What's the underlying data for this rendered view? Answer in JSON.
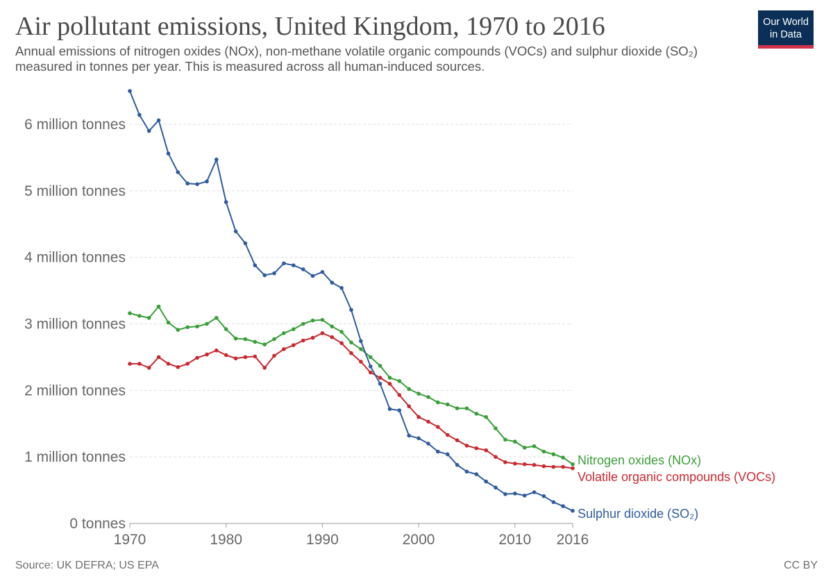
{
  "title": "Air pollutant emissions, United Kingdom, 1970 to 2016",
  "subtitle": "Annual emissions of nitrogen oxides (NOx), non-methane volatile organic compounds (VOCs) and sulphur dioxide (SO₂) measured in tonnes per year. This is measured across all human-induced sources.",
  "logo": {
    "line1": "Our World",
    "line2": "in Data",
    "bg_color": "#0b2f57",
    "accent_color": "#d0344a"
  },
  "source": "Source: UK DEFRA; US EPA",
  "license": "CC BY",
  "chart_data": {
    "type": "line",
    "ylim": [
      0,
      6500000
    ],
    "xlim": [
      1970,
      2016
    ],
    "grid": true,
    "legend_placement": "labels at line ends (right)",
    "y_ticks": [
      {
        "value": 0,
        "label": "0 tonnes"
      },
      {
        "value": 1000000,
        "label": "1 million tonnes"
      },
      {
        "value": 2000000,
        "label": "2 million tonnes"
      },
      {
        "value": 3000000,
        "label": "3 million tonnes"
      },
      {
        "value": 4000000,
        "label": "4 million tonnes"
      },
      {
        "value": 5000000,
        "label": "5 million tonnes"
      },
      {
        "value": 6000000,
        "label": "6 million tonnes"
      }
    ],
    "x_ticks": [
      {
        "value": 1970,
        "label": "1970"
      },
      {
        "value": 1980,
        "label": "1980"
      },
      {
        "value": 1990,
        "label": "1990"
      },
      {
        "value": 2000,
        "label": "2000"
      },
      {
        "value": 2010,
        "label": "2010"
      },
      {
        "value": 2016,
        "label": "2016"
      }
    ],
    "x": [
      1970,
      1971,
      1972,
      1973,
      1974,
      1975,
      1976,
      1977,
      1978,
      1979,
      1980,
      1981,
      1982,
      1983,
      1984,
      1985,
      1986,
      1987,
      1988,
      1989,
      1990,
      1991,
      1992,
      1993,
      1994,
      1995,
      1996,
      1997,
      1998,
      1999,
      2000,
      2001,
      2002,
      2003,
      2004,
      2005,
      2006,
      2007,
      2008,
      2009,
      2010,
      2011,
      2012,
      2013,
      2014,
      2015,
      2016
    ],
    "series": [
      {
        "name": "Nitrogen oxides (NOx)",
        "color": "#3a9e3a",
        "values": [
          3160000,
          3120000,
          3090000,
          3260000,
          3020000,
          2910000,
          2950000,
          2960000,
          3000000,
          3090000,
          2920000,
          2780000,
          2770000,
          2730000,
          2690000,
          2770000,
          2860000,
          2920000,
          3000000,
          3050000,
          3060000,
          2960000,
          2880000,
          2720000,
          2620000,
          2500000,
          2370000,
          2190000,
          2140000,
          2020000,
          1950000,
          1900000,
          1820000,
          1790000,
          1730000,
          1730000,
          1650000,
          1600000,
          1430000,
          1260000,
          1230000,
          1140000,
          1160000,
          1080000,
          1040000,
          990000,
          890000
        ]
      },
      {
        "name": "Volatile organic compounds (VOCs)",
        "color": "#c8292f",
        "values": [
          2400000,
          2400000,
          2340000,
          2500000,
          2400000,
          2350000,
          2400000,
          2490000,
          2540000,
          2600000,
          2530000,
          2480000,
          2500000,
          2510000,
          2340000,
          2520000,
          2620000,
          2680000,
          2750000,
          2790000,
          2860000,
          2800000,
          2710000,
          2560000,
          2430000,
          2270000,
          2190000,
          2100000,
          1930000,
          1760000,
          1600000,
          1530000,
          1450000,
          1330000,
          1250000,
          1170000,
          1130000,
          1100000,
          1000000,
          920000,
          900000,
          890000,
          880000,
          860000,
          850000,
          850000,
          830000
        ]
      },
      {
        "name": "Sulphur dioxide (SO₂)",
        "color": "#2f5b9e",
        "values": [
          6500000,
          6140000,
          5900000,
          6060000,
          5560000,
          5280000,
          5110000,
          5100000,
          5140000,
          5470000,
          4830000,
          4390000,
          4210000,
          3880000,
          3730000,
          3760000,
          3910000,
          3880000,
          3820000,
          3720000,
          3780000,
          3620000,
          3540000,
          3210000,
          2740000,
          2360000,
          2100000,
          1720000,
          1700000,
          1320000,
          1280000,
          1200000,
          1080000,
          1040000,
          880000,
          780000,
          740000,
          630000,
          540000,
          440000,
          450000,
          420000,
          470000,
          410000,
          320000,
          260000,
          190000
        ]
      }
    ]
  }
}
